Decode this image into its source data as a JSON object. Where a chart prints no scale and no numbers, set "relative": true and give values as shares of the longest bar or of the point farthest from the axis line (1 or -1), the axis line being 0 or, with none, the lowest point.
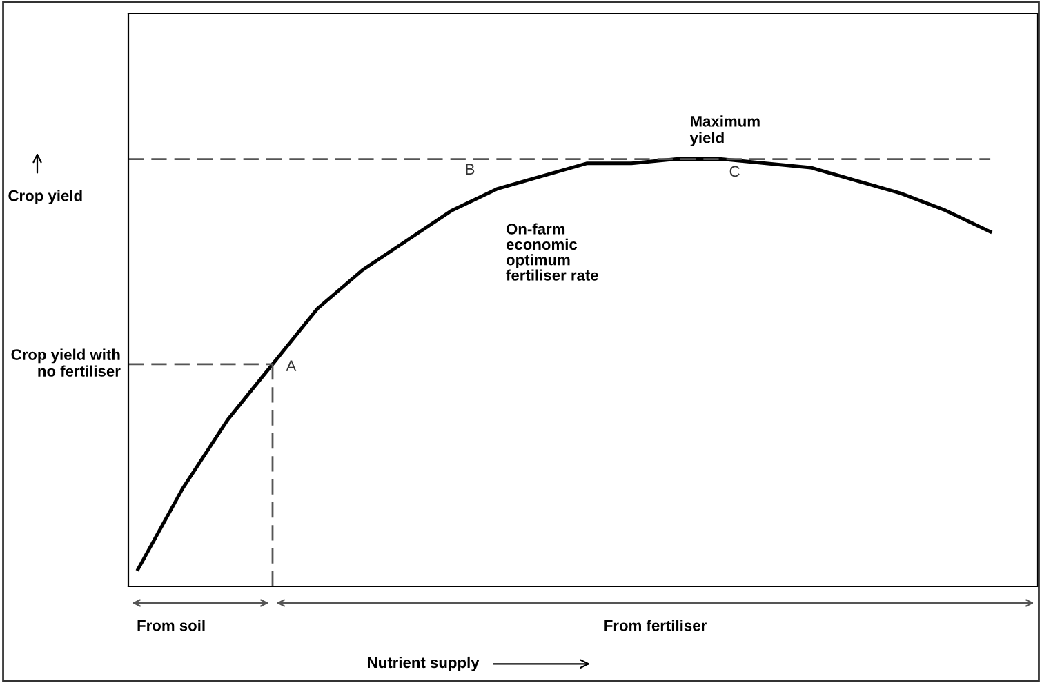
{
  "chart_data": {
    "type": "line",
    "relative": true,
    "ylabel": "Crop yield",
    "xlabel": "Nutrient supply",
    "categories": [
      null,
      null,
      null,
      null,
      null,
      null,
      null,
      null,
      null,
      null,
      null,
      null,
      null,
      null,
      null,
      null,
      null,
      null,
      null,
      null
    ],
    "series": [
      {
        "color": "#000000",
        "values": [
          0.04,
          0.23,
          0.39,
          0.52,
          0.65,
          0.74,
          0.81,
          0.88,
          0.93,
          0.96,
          0.99,
          0.99,
          1.0,
          1.0,
          0.99,
          0.98,
          0.95,
          0.92,
          0.88,
          0.83
        ]
      }
    ],
    "ref_lines": [
      {
        "axis": "y",
        "value": 1.0,
        "label": "Maximum yield",
        "line_style": "dashed",
        "color": "#555555"
      },
      {
        "axis": "y",
        "value": 0.52,
        "label": "Crop yield with no fertiliser",
        "line_style": "dashed",
        "color": "#555555"
      }
    ],
    "annotations": [
      "A",
      "B",
      "C",
      "On-farm economic optimum fertiliser rate",
      "From soil",
      "From fertiliser"
    ],
    "marker": "none",
    "line_style": "solid"
  }
}
